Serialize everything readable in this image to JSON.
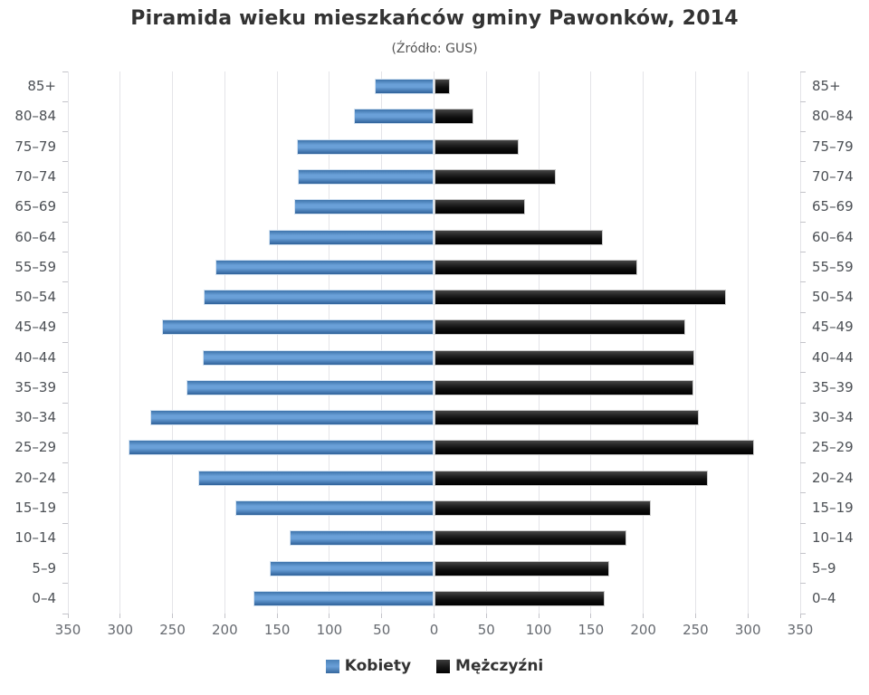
{
  "title": "Piramida wieku mieszkańców gminy Pawonków, 2014",
  "subtitle": "(Źródło: GUS)",
  "legend": {
    "female": "Kobiety",
    "male": "Mężczyźni"
  },
  "colors": {
    "female_bar": "#4d87c4",
    "male_bar": "#1a1a1a",
    "gridline": "#e4e4e8",
    "axis_text": "#666a70",
    "category_text": "#4c5055",
    "title_text": "#333333"
  },
  "chart_data": {
    "type": "bar",
    "orientation": "horizontal-population-pyramid",
    "title": "Piramida wieku mieszkańców gminy Pawonków, 2014",
    "subtitle": "(Źródło: GUS)",
    "categories": [
      "85+",
      "80–84",
      "75–79",
      "70–74",
      "65–69",
      "60–64",
      "55–59",
      "50–54",
      "45–49",
      "40–44",
      "35–39",
      "30–34",
      "25–29",
      "20–24",
      "15–19",
      "10–14",
      "5–9",
      "0–4"
    ],
    "series": [
      {
        "name": "Kobiety",
        "side": "left",
        "color": "#4d87c4",
        "values": [
          57,
          77,
          131,
          130,
          134,
          158,
          209,
          220,
          260,
          221,
          237,
          271,
          292,
          225,
          190,
          138,
          157,
          173
        ]
      },
      {
        "name": "Mężczyźni",
        "side": "right",
        "color": "#1a1a1a",
        "values": [
          15,
          38,
          81,
          116,
          87,
          161,
          194,
          279,
          240,
          249,
          248,
          253,
          306,
          262,
          207,
          184,
          167,
          163
        ]
      }
    ],
    "xlabel": "",
    "ylabel": "",
    "axis": {
      "max": 350,
      "step": 50,
      "tick_labels": [
        350,
        300,
        250,
        200,
        150,
        100,
        50,
        0,
        50,
        100,
        150,
        200,
        250,
        300,
        350
      ]
    },
    "grid": true,
    "legend_position": "bottom-center"
  }
}
